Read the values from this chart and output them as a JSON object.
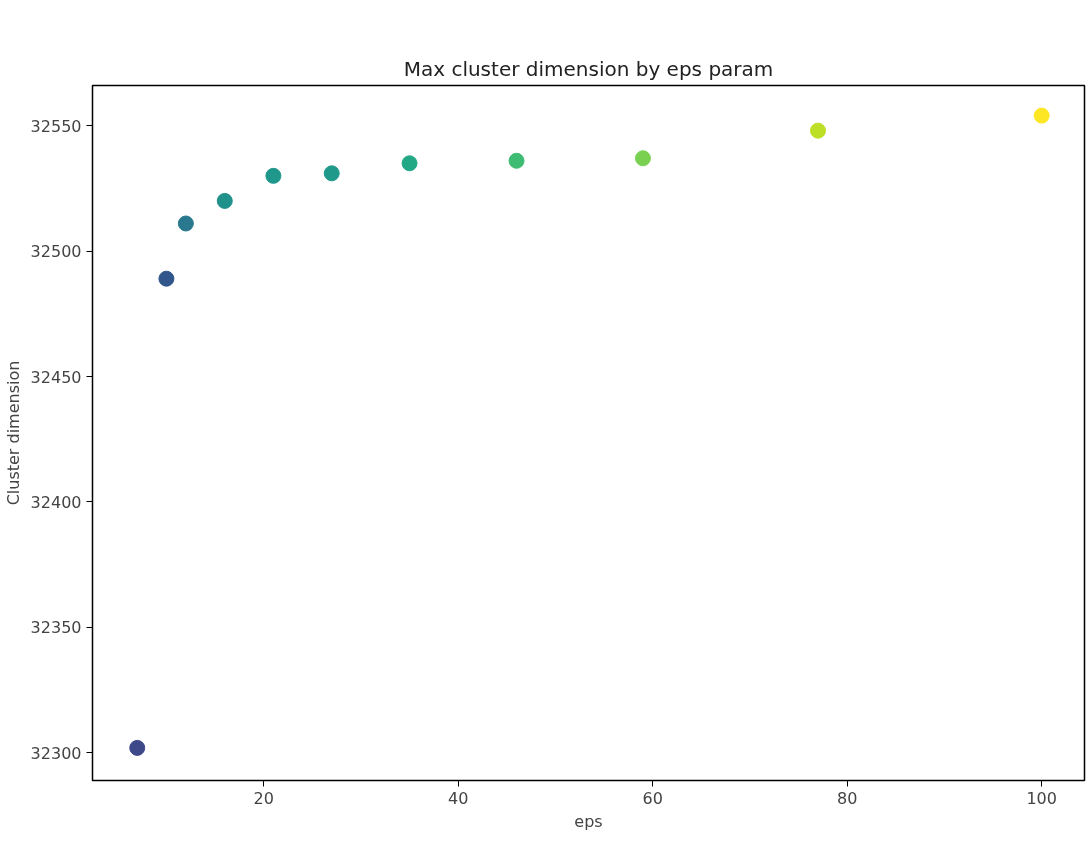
{
  "chart_data": {
    "type": "scatter",
    "title": "Max cluster dimension by eps param",
    "xlabel": "eps",
    "ylabel": "Cluster dimension",
    "x": [
      7,
      10,
      12,
      16,
      21,
      27,
      35,
      46,
      59,
      77,
      100
    ],
    "values": [
      32302,
      32489,
      32511,
      32520,
      32530,
      32531,
      32535,
      32536,
      32537,
      32548,
      32554
    ],
    "colors": [
      "#3e4989",
      "#30568c",
      "#29788e",
      "#21918c",
      "#1f988b",
      "#1f998a",
      "#22a884",
      "#3fbc73",
      "#7ad151",
      "#bddf26",
      "#fde725"
    ],
    "marker": "circle",
    "xlim": [
      2.4,
      104.4
    ],
    "ylim": [
      32289,
      32566
    ],
    "xticks": [
      20,
      40,
      60,
      80,
      100
    ],
    "yticks": [
      32300,
      32350,
      32400,
      32450,
      32500,
      32550
    ],
    "grid": false
  }
}
